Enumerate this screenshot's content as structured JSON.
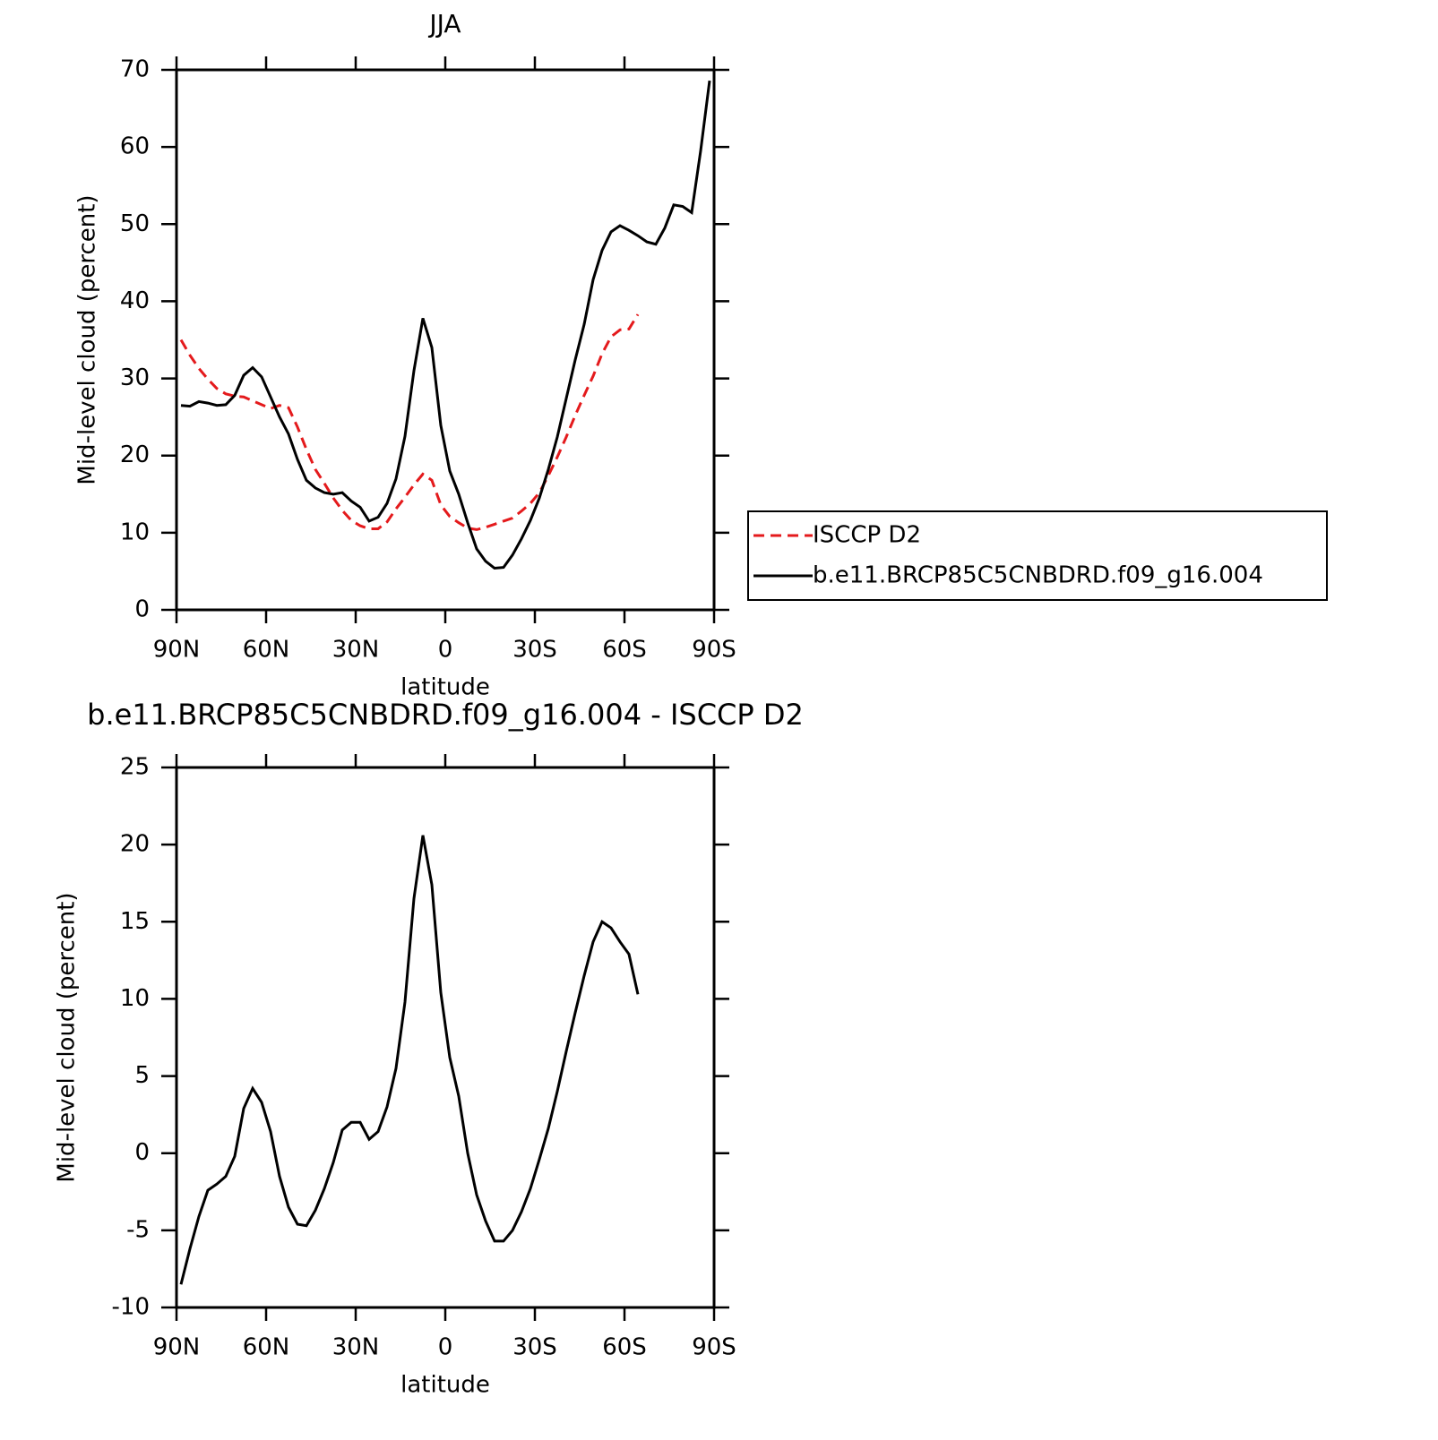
{
  "chart_data": [
    {
      "type": "line",
      "title": "JJA",
      "xlabel": "latitude",
      "ylabel": "Mid-level cloud (percent)",
      "x": [
        88.5,
        85.5,
        82.5,
        79.5,
        76.5,
        73.5,
        70.5,
        67.5,
        64.5,
        61.5,
        58.5,
        55.5,
        52.5,
        49.5,
        46.5,
        43.5,
        40.5,
        37.5,
        34.5,
        31.5,
        28.5,
        25.5,
        22.5,
        19.5,
        16.5,
        13.5,
        10.5,
        7.5,
        4.5,
        1.5,
        -1.5,
        -4.5,
        -7.5,
        -10.5,
        -13.5,
        -16.5,
        -19.5,
        -22.5,
        -25.5,
        -28.5,
        -31.5,
        -34.5,
        -37.5,
        -40.5,
        -43.5,
        -46.5,
        -49.5,
        -52.5,
        -55.5,
        -58.5,
        -61.5,
        -64.5,
        -67.5,
        -70.5,
        -73.5,
        -76.5,
        -79.5,
        -82.5,
        -85.5,
        -88.5
      ],
      "series": [
        {
          "name": "ISCCP D2",
          "color": "#e41a1c",
          "dash": true,
          "values": [
            35.0,
            33.0,
            31.3,
            29.9,
            28.7,
            28.0,
            27.7,
            27.6,
            27.1,
            26.6,
            26.1,
            26.5,
            26.2,
            23.7,
            20.8,
            18.2,
            16.4,
            14.5,
            12.9,
            11.6,
            10.9,
            10.5,
            10.5,
            11.4,
            13.1,
            14.6,
            16.2,
            17.6,
            16.8,
            13.6,
            12.1,
            11.3,
            10.6,
            10.4,
            10.7,
            11.1,
            11.5,
            11.9,
            12.8,
            13.8,
            15.2,
            17.4,
            19.8,
            22.4,
            25.2,
            27.8,
            30.3,
            33.2,
            35.4,
            36.3,
            36.4,
            38.3,
            null,
            null,
            null,
            null,
            null,
            null,
            null,
            null
          ]
        },
        {
          "name": "b.e11.BRCP85C5CNBDRD.f09_g16.004",
          "color": "#000000",
          "dash": false,
          "values": [
            26.5,
            26.4,
            27.0,
            26.8,
            26.5,
            26.6,
            27.8,
            30.4,
            31.4,
            30.2,
            27.6,
            25.0,
            22.8,
            19.5,
            16.8,
            15.8,
            15.2,
            15.0,
            15.2,
            14.1,
            13.3,
            11.5,
            12.0,
            13.8,
            17.0,
            22.5,
            31.0,
            37.8,
            34.0,
            23.9,
            18.0,
            15.0,
            11.3,
            7.9,
            6.3,
            5.4,
            5.5,
            7.1,
            9.2,
            11.6,
            14.5,
            18.2,
            22.4,
            27.4,
            32.4,
            37.0,
            42.8,
            46.6,
            49.0,
            49.8,
            49.2,
            48.5,
            47.7,
            47.4,
            49.5,
            52.5,
            52.3,
            51.5,
            59.5,
            68.6
          ]
        }
      ],
      "xlim": [
        90,
        -90
      ],
      "xticks": [
        {
          "value": 90,
          "label": "90N"
        },
        {
          "value": 60,
          "label": "60N"
        },
        {
          "value": 30,
          "label": "30N"
        },
        0,
        {
          "value": -30,
          "label": "30S"
        },
        {
          "value": -60,
          "label": "60S"
        },
        {
          "value": -90,
          "label": "90S"
        }
      ],
      "ylim": [
        0,
        70
      ],
      "yticks": [
        0,
        10,
        20,
        30,
        40,
        50,
        60,
        70
      ],
      "legend": "right"
    },
    {
      "type": "line",
      "title": "b.e11.BRCP85C5CNBDRD.f09_g16.004 - ISCCP D2",
      "xlabel": "latitude",
      "ylabel": "Mid-level cloud (percent)",
      "x": [
        88.5,
        85.5,
        82.5,
        79.5,
        76.5,
        73.5,
        70.5,
        67.5,
        64.5,
        61.5,
        58.5,
        55.5,
        52.5,
        49.5,
        46.5,
        43.5,
        40.5,
        37.5,
        34.5,
        31.5,
        28.5,
        25.5,
        22.5,
        19.5,
        16.5,
        13.5,
        10.5,
        7.5,
        4.5,
        1.5,
        -1.5,
        -4.5,
        -7.5,
        -10.5,
        -13.5,
        -16.5,
        -19.5,
        -22.5,
        -25.5,
        -28.5,
        -31.5,
        -34.5,
        -37.5,
        -40.5,
        -43.5,
        -46.5,
        -49.5,
        -52.5,
        -55.5,
        -58.5,
        -61.5,
        -64.5
      ],
      "series": [
        {
          "color": "#000000",
          "dash": false,
          "values": [
            -8.5,
            -6.2,
            -4.1,
            -2.4,
            -2.0,
            -1.5,
            -0.2,
            2.9,
            4.2,
            3.3,
            1.4,
            -1.5,
            -3.5,
            -4.6,
            -4.7,
            -3.7,
            -2.3,
            -0.6,
            1.5,
            2.0,
            2.0,
            0.9,
            1.4,
            3.0,
            5.5,
            9.8,
            16.5,
            20.6,
            17.4,
            10.4,
            6.2,
            3.7,
            0.0,
            -2.7,
            -4.4,
            -5.7,
            -5.7,
            -5.0,
            -3.8,
            -2.3,
            -0.4,
            1.6,
            4.0,
            6.6,
            9.1,
            11.5,
            13.7,
            15.0,
            14.6,
            13.7,
            12.9,
            10.3
          ]
        }
      ],
      "xlim": [
        90,
        -90
      ],
      "xticks": [
        {
          "value": 90,
          "label": "90N"
        },
        {
          "value": 60,
          "label": "60N"
        },
        {
          "value": 30,
          "label": "30N"
        },
        0,
        {
          "value": -30,
          "label": "30S"
        },
        {
          "value": -60,
          "label": "60S"
        },
        {
          "value": -90,
          "label": "90S"
        }
      ],
      "ylim": [
        -10,
        25
      ],
      "yticks": [
        -10,
        -5,
        0,
        5,
        10,
        15,
        20,
        25
      ]
    }
  ]
}
